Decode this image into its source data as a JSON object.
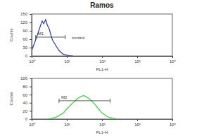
{
  "chart_data": [
    {
      "type": "line",
      "title": "Ramos",
      "x_label": "FL1-H",
      "y_label": "Counts",
      "log": "x",
      "color": "#2b3aa0",
      "x": [
        1,
        1.2,
        1.5,
        1.8,
        2,
        2.2,
        2.5,
        2.8,
        3.2,
        3.6,
        4,
        5,
        6,
        7,
        8,
        10,
        12,
        15
      ],
      "values": [
        20,
        45,
        80,
        110,
        125,
        115,
        130,
        110,
        95,
        70,
        55,
        35,
        20,
        12,
        6,
        3,
        1,
        0
      ],
      "xlim": [
        1,
        10000
      ],
      "xticks": [
        {
          "value": 1,
          "label": "10⁰"
        },
        {
          "value": 10,
          "label": "10¹"
        },
        {
          "value": 100,
          "label": "10²"
        },
        {
          "value": 1000,
          "label": "10³"
        },
        {
          "value": 10000,
          "label": "10⁴"
        }
      ],
      "ylim": [
        0,
        150
      ],
      "yticks": [
        0,
        30,
        60,
        90,
        120,
        150
      ],
      "gate": {
        "label": "M1",
        "range": [
          1.3,
          9
        ]
      },
      "annotations": [
        {
          "text": "control",
          "x": 14,
          "y": 60
        }
      ]
    },
    {
      "type": "line",
      "x_label": "FL1-H",
      "y_label": "Counts",
      "log": "x",
      "color": "#3ccc3c",
      "x": [
        3,
        4,
        5,
        6,
        8,
        10,
        13,
        16,
        20,
        25,
        30,
        35,
        40,
        50,
        60,
        80,
        100,
        130,
        160,
        200,
        250
      ],
      "values": [
        0,
        2,
        5,
        8,
        15,
        25,
        35,
        42,
        50,
        55,
        58,
        55,
        52,
        45,
        38,
        25,
        15,
        8,
        4,
        2,
        0
      ],
      "xlim": [
        1,
        10000
      ],
      "xticks": [
        {
          "value": 1,
          "label": "10⁰"
        },
        {
          "value": 10,
          "label": "10¹"
        },
        {
          "value": 100,
          "label": "10²"
        },
        {
          "value": 1000,
          "label": "10³"
        },
        {
          "value": 10000,
          "label": "10⁴"
        }
      ],
      "ylim": [
        0,
        100
      ],
      "yticks": [
        0,
        20,
        40,
        60,
        80,
        100
      ],
      "gate": {
        "label": "M2",
        "range": [
          6,
          170
        ]
      }
    }
  ]
}
